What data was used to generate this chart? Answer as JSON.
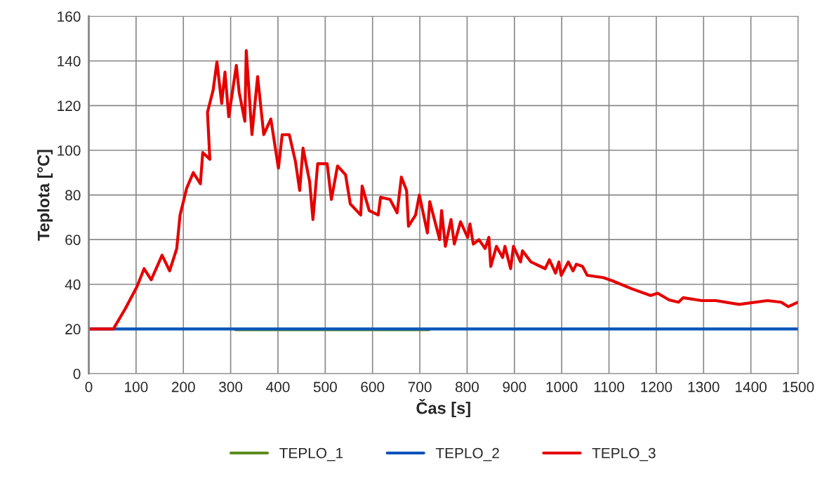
{
  "chart_data": {
    "type": "line",
    "xlabel": "Čas [s]",
    "ylabel": "Teplota [°C]",
    "xlim": [
      0,
      1500
    ],
    "xticks": [
      0,
      100,
      200,
      300,
      400,
      500,
      600,
      700,
      800,
      900,
      1000,
      1100,
      1200,
      1300,
      1400,
      1500
    ],
    "ylim": [
      0,
      160
    ],
    "yticks": [
      0,
      20,
      40,
      60,
      80,
      100,
      120,
      140,
      160
    ],
    "grid": true,
    "legend": "bottom",
    "marker": "none",
    "line_style": "solid",
    "series": [
      {
        "name": "TEPLO_1",
        "color": "#5b8c1e",
        "x": [
          310,
          720
        ],
        "values": [
          19.7,
          19.7
        ]
      },
      {
        "name": "TEPLO_2",
        "color": "#0a54b8",
        "x": [
          0,
          1500
        ],
        "values": [
          20,
          20
        ]
      },
      {
        "name": "TEPLO_3",
        "color": "#e60000",
        "x": [
          0,
          52,
          77,
          102,
          117,
          132,
          155,
          171,
          186,
          193,
          207,
          221,
          236,
          241,
          256,
          251,
          263,
          271,
          281,
          288,
          296,
          312,
          318,
          330,
          333,
          345,
          357,
          370,
          385,
          401,
          409,
          424,
          437,
          446,
          453,
          467,
          474,
          484,
          504,
          513,
          526,
          543,
          553,
          575,
          578,
          593,
          612,
          617,
          637,
          652,
          661,
          672,
          676,
          691,
          699,
          716,
          721,
          742,
          746,
          754,
          766,
          773,
          786,
          801,
          806,
          813,
          825,
          838,
          846,
          850,
          862,
          875,
          880,
          892,
          898,
          913,
          917,
          935,
          965,
          974,
          987,
          994,
          999,
          1014,
          1024,
          1031,
          1044,
          1054,
          1088,
          1108,
          1148,
          1188,
          1203,
          1227,
          1247,
          1257,
          1296,
          1326,
          1375,
          1435,
          1464,
          1479,
          1500
        ],
        "values": [
          20,
          20,
          29,
          39,
          47,
          42,
          53,
          46,
          56,
          71,
          83,
          90,
          85,
          99,
          96,
          117,
          127,
          139.6,
          121,
          135,
          115,
          138,
          126,
          113,
          144.6,
          107,
          133,
          107,
          114,
          92,
          107,
          107,
          95,
          82,
          101,
          86,
          69,
          94,
          94,
          78,
          93,
          89,
          76,
          71,
          84,
          73,
          71,
          79,
          78,
          72,
          88,
          82,
          66,
          71,
          80,
          63,
          77,
          60,
          73,
          57,
          69,
          58,
          68,
          61,
          67,
          58,
          60,
          56,
          61,
          48,
          57,
          52,
          57,
          47,
          57,
          50,
          55,
          50,
          47,
          51,
          45,
          50,
          44,
          50,
          46,
          49,
          48,
          44,
          43,
          41.5,
          38,
          35,
          36,
          33,
          32,
          34,
          32.7,
          32.7,
          31,
          32.7,
          32,
          30,
          32
        ]
      }
    ]
  }
}
